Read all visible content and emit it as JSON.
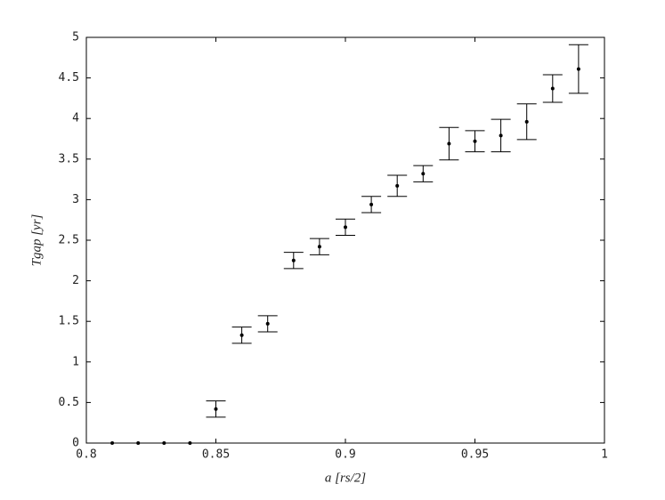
{
  "chart_data": {
    "type": "scatter",
    "x_label": "a [rs/2]",
    "y_label": "Tgap [yr]",
    "series": [
      {
        "color": "#000000",
        "x": [
          0.81,
          0.82,
          0.83,
          0.84,
          0.85,
          0.86,
          0.87,
          0.88,
          0.89,
          0.9,
          0.91,
          0.92,
          0.93,
          0.94,
          0.95,
          0.96,
          0.97,
          0.98,
          0.99
        ],
        "values": [
          0,
          0,
          0,
          0,
          0.42,
          1.33,
          1.47,
          2.25,
          2.42,
          2.66,
          2.94,
          3.17,
          3.32,
          3.69,
          3.72,
          3.79,
          3.96,
          4.37,
          4.61
        ],
        "errors": [
          0,
          0,
          0,
          0,
          0.1,
          0.1,
          0.1,
          0.1,
          0.1,
          0.1,
          0.1,
          0.13,
          0.1,
          0.2,
          0.13,
          0.2,
          0.22,
          0.17,
          0.3
        ]
      }
    ],
    "xlim": [
      0.8,
      1
    ],
    "xticks": [
      0.8,
      0.85,
      0.9,
      0.95,
      1
    ],
    "ylim": [
      0,
      5
    ],
    "yticks": [
      0,
      0.5,
      1,
      1.5,
      2,
      2.5,
      3,
      3.5,
      4,
      4.5,
      5
    ],
    "grid": false
  }
}
